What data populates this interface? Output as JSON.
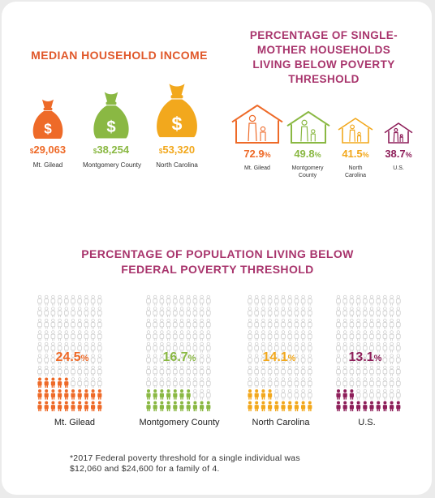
{
  "colors": {
    "orange": "#ee6a28",
    "green": "#8ab843",
    "gold": "#f2a81d",
    "purple": "#8e1f5a",
    "title_orange": "#e0582a",
    "title_purple": "#a8346c",
    "person_outline": "#c8c8c8"
  },
  "income": {
    "title": "MEDIAN HOUSEHOLD INCOME",
    "items": [
      {
        "icon": "money-bag-icon",
        "dollar_sign": "$",
        "value": "29,063",
        "label": "Mt. Gilead",
        "color": "orange"
      },
      {
        "icon": "money-bag-icon",
        "dollar_sign": "$",
        "value": "38,254",
        "label": "Montgomery County",
        "color": "green"
      },
      {
        "icon": "money-bag-icon",
        "dollar_sign": "$",
        "value": "53,320",
        "label": "North Carolina",
        "color": "gold"
      }
    ]
  },
  "single_mother": {
    "title": "PERCENTAGE OF SINGLE-MOTHER HOUSEHOLDS LIVING BELOW POVERTY THRESHOLD",
    "title_lines": [
      "PERCENTAGE OF SINGLE-",
      "MOTHER HOUSEHOLDS",
      "LIVING BELOW POVERTY",
      "THRESHOLD"
    ],
    "items": [
      {
        "icon": "house-family-icon",
        "number": "72.9",
        "unit": "%",
        "label": "Mt. Gilead",
        "label_lines": [
          "Mt. Gilead"
        ],
        "color": "orange"
      },
      {
        "icon": "house-family-icon",
        "number": "49.8",
        "unit": "%",
        "label": "Montgomery County",
        "label_lines": [
          "Montgomery",
          "County"
        ],
        "color": "green"
      },
      {
        "icon": "house-family-icon",
        "number": "41.5",
        "unit": "%",
        "label": "North Carolina",
        "label_lines": [
          "North",
          "Carolina"
        ],
        "color": "gold"
      },
      {
        "icon": "house-family-icon",
        "number": "38.7",
        "unit": "%",
        "label": "U.S.",
        "label_lines": [
          "U.S."
        ],
        "color": "purple"
      }
    ]
  },
  "population": {
    "title": "PERCENTAGE OF POPULATION LIVING BELOW FEDERAL POVERTY THRESHOLD",
    "title_lines": [
      "PERCENTAGE OF POPULATION LIVING BELOW",
      "FEDERAL POVERTY THRESHOLD"
    ],
    "items": [
      {
        "icon": "person-icon",
        "number": "24.5",
        "unit": "%",
        "label": "Mt. Gilead",
        "color": "orange",
        "fraction": 0.245
      },
      {
        "icon": "person-icon",
        "number": "16.7",
        "unit": "%",
        "label": "Montgomery County",
        "color": "green",
        "fraction": 0.167
      },
      {
        "icon": "person-icon",
        "number": "14.1",
        "unit": "%",
        "label": "North Carolina",
        "color": "gold",
        "fraction": 0.141
      },
      {
        "icon": "person-icon",
        "number": "13.1",
        "unit": "%",
        "label": "U.S.",
        "color": "purple",
        "fraction": 0.131
      }
    ]
  },
  "footnote": {
    "lines": [
      "*2017 Federal poverty threshold for a single individual was",
      "$12,060 and $24,600 for a family of 4."
    ]
  }
}
